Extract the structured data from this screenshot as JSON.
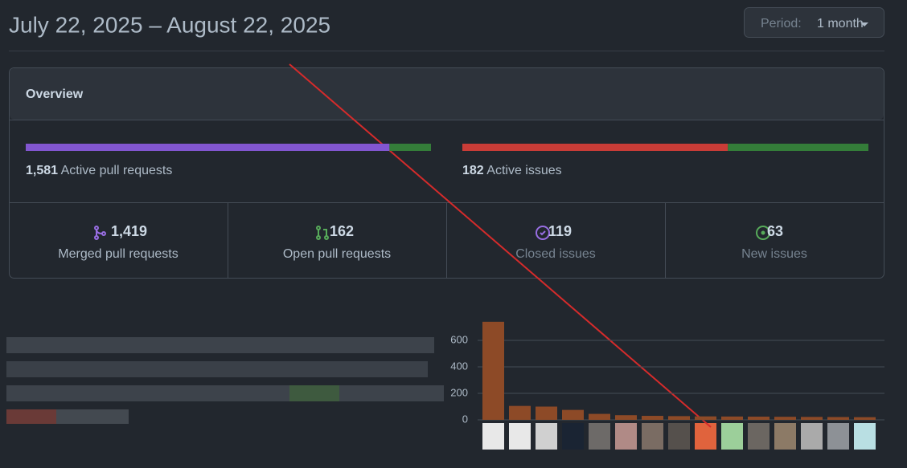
{
  "header": {
    "title": "July 22, 2025 – August 22, 2025",
    "period_label": "Period:",
    "period_value": "1 month"
  },
  "overview": {
    "title": "Overview",
    "pull_requests": {
      "total": {
        "value": 1581,
        "label": "1,581"
      },
      "caption": "Active pull requests"
    },
    "issues": {
      "total": 182,
      "caption": "Active issues"
    },
    "stats": [
      {
        "value": {
          "value": 1419,
          "label": "1,419"
        },
        "caption": "Merged pull requests"
      },
      {
        "value": 162,
        "caption": "Open pull requests"
      },
      {
        "value": 119,
        "caption": "Closed issues"
      },
      {
        "value": 63,
        "caption": "New issues"
      }
    ]
  },
  "chart_data": {
    "type": "bar",
    "values": [
      740,
      105,
      100,
      75,
      45,
      35,
      30,
      28,
      26,
      25,
      24,
      23,
      22,
      21,
      20
    ],
    "color": "#8d4a27",
    "ylim": [
      0,
      745
    ],
    "yticks": [
      0,
      200,
      400,
      600
    ],
    "grid": true
  }
}
